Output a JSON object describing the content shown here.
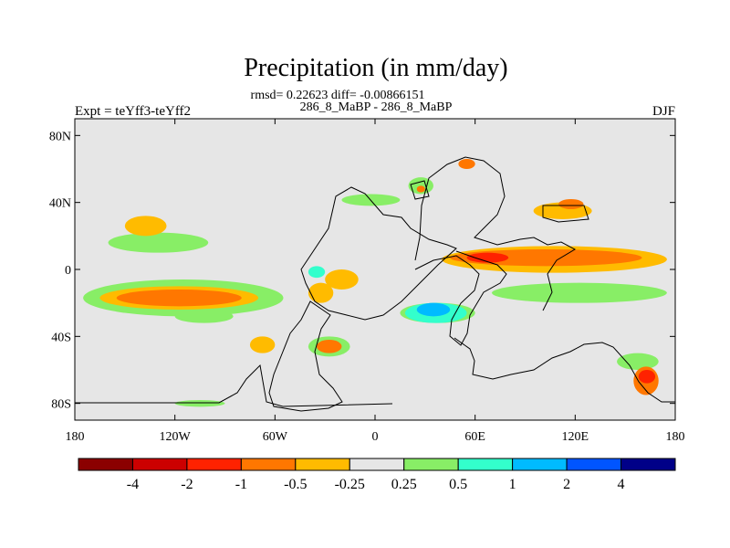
{
  "chart_data": {
    "type": "heatmap",
    "title": "Precipitation (in mm/day)",
    "subtitle": "rmsd= 0.22623 diff= -0.00866151",
    "run_label": "286_8_MaBP - 286_8_MaBP",
    "left_label": "Expt = teYff3-teYff2",
    "right_label": "DJF",
    "xlabel": "",
    "ylabel": "",
    "xlim": [
      -180,
      180
    ],
    "ylim": [
      -90,
      90
    ],
    "x_ticks": [
      {
        "value": -180,
        "label": "180"
      },
      {
        "value": -120,
        "label": "120W"
      },
      {
        "value": -60,
        "label": "60W"
      },
      {
        "value": 0,
        "label": "0"
      },
      {
        "value": 60,
        "label": "60E"
      },
      {
        "value": 120,
        "label": "120E"
      },
      {
        "value": 180,
        "label": "180"
      }
    ],
    "y_ticks": [
      {
        "value": 80,
        "label": "80N"
      },
      {
        "value": 40,
        "label": "40N"
      },
      {
        "value": 0,
        "label": "0"
      },
      {
        "value": -40,
        "label": "40S"
      },
      {
        "value": -80,
        "label": "80S"
      }
    ],
    "background_color": "#e6e6e6",
    "coast_color": "#000000",
    "colorbar": {
      "colors": [
        "#8b0000",
        "#cc0000",
        "#ff2200",
        "#ff7700",
        "#ffbb00",
        "#e6e6e6",
        "#88ee66",
        "#33ffcc",
        "#00bbff",
        "#0055ff",
        "#000088"
      ],
      "labels": [
        "-4",
        "-2",
        "-1",
        "-0.5",
        "-0.25",
        "0.25",
        "0.5",
        "1",
        "2",
        "4"
      ]
    },
    "regions": [
      {
        "name": "itcz-central-pacific-band",
        "color": "#88ee66",
        "lon": [
          -175,
          -55
        ],
        "lat": [
          -28,
          -6
        ]
      },
      {
        "name": "itcz-central-pacific-core",
        "color": "#ffbb00",
        "lon": [
          -165,
          -70
        ],
        "lat": [
          -24,
          -10
        ]
      },
      {
        "name": "itcz-central-pacific-max",
        "color": "#ff7700",
        "lon": [
          -155,
          -80
        ],
        "lat": [
          -22,
          -12
        ]
      },
      {
        "name": "north-pacific-green",
        "color": "#88ee66",
        "lon": [
          -160,
          -100
        ],
        "lat": [
          10,
          22
        ]
      },
      {
        "name": "north-pacific-yellow",
        "color": "#ffbb00",
        "lon": [
          -150,
          -125
        ],
        "lat": [
          20,
          32
        ]
      },
      {
        "name": "south-pacific-green",
        "color": "#88ee66",
        "lon": [
          -120,
          -85
        ],
        "lat": [
          -32,
          -24
        ]
      },
      {
        "name": "south-america-yellow",
        "color": "#ffbb00",
        "lon": [
          -40,
          -25
        ],
        "lat": [
          -20,
          -8
        ]
      },
      {
        "name": "south-atlantic-green",
        "color": "#88ee66",
        "lon": [
          -40,
          -15
        ],
        "lat": [
          -52,
          -40
        ]
      },
      {
        "name": "south-atlantic-orange",
        "color": "#ff7700",
        "lon": [
          -35,
          -20
        ],
        "lat": [
          -50,
          -42
        ]
      },
      {
        "name": "north-africa-cyan",
        "color": "#33ffcc",
        "lon": [
          -40,
          -30
        ],
        "lat": [
          -5,
          2
        ]
      },
      {
        "name": "north-atlantic-green",
        "color": "#88ee66",
        "lon": [
          -20,
          15
        ],
        "lat": [
          38,
          45
        ]
      },
      {
        "name": "europe-green",
        "color": "#88ee66",
        "lon": [
          20,
          35
        ],
        "lat": [
          45,
          55
        ]
      },
      {
        "name": "europe-orange",
        "color": "#ff7700",
        "lon": [
          25,
          30
        ],
        "lat": [
          46,
          50
        ]
      },
      {
        "name": "siberia-orange",
        "color": "#ff7700",
        "lon": [
          50,
          60
        ],
        "lat": [
          60,
          66
        ]
      },
      {
        "name": "indian-ocean-green",
        "color": "#88ee66",
        "lon": [
          15,
          60
        ],
        "lat": [
          -32,
          -20
        ]
      },
      {
        "name": "indian-ocean-cyan",
        "color": "#33ffcc",
        "lon": [
          18,
          55
        ],
        "lat": [
          -32,
          -20
        ]
      },
      {
        "name": "indian-ocean-blue",
        "color": "#00bbff",
        "lon": [
          25,
          45
        ],
        "lat": [
          -28,
          -20
        ]
      },
      {
        "name": "africa-arabia-band-yellow",
        "color": "#ffbb00",
        "lon": [
          40,
          175
        ],
        "lat": [
          -2,
          14
        ]
      },
      {
        "name": "africa-arabia-band-orange",
        "color": "#ff7700",
        "lon": [
          45,
          160
        ],
        "lat": [
          2,
          12
        ]
      },
      {
        "name": "africa-arabia-band-red",
        "color": "#ff2200",
        "lon": [
          55,
          80
        ],
        "lat": [
          4,
          10
        ]
      },
      {
        "name": "east-asia-yellow",
        "color": "#ffbb00",
        "lon": [
          95,
          130
        ],
        "lat": [
          30,
          40
        ]
      },
      {
        "name": "east-asia-orange",
        "color": "#ff7700",
        "lon": [
          110,
          125
        ],
        "lat": [
          36,
          42
        ]
      },
      {
        "name": "western-pacific-green",
        "color": "#88ee66",
        "lon": [
          70,
          175
        ],
        "lat": [
          -20,
          -8
        ]
      },
      {
        "name": "southern-ocean-green",
        "color": "#88ee66",
        "lon": [
          145,
          170
        ],
        "lat": [
          -60,
          -50
        ]
      },
      {
        "name": "southern-ocean-orange",
        "color": "#ff7700",
        "lon": [
          155,
          170
        ],
        "lat": [
          -75,
          -58
        ]
      },
      {
        "name": "southern-ocean-red",
        "color": "#ff2200",
        "lon": [
          158,
          168
        ],
        "lat": [
          -68,
          -60
        ]
      },
      {
        "name": "north-atlantic-yellow",
        "color": "#ffbb00",
        "lon": [
          -30,
          -10
        ],
        "lat": [
          -12,
          0
        ]
      },
      {
        "name": "patagonia-yellow",
        "color": "#ffbb00",
        "lon": [
          -75,
          -60
        ],
        "lat": [
          -50,
          -40
        ]
      },
      {
        "name": "antarctic-green",
        "color": "#88ee66",
        "lon": [
          -120,
          -90
        ],
        "lat": [
          -82,
          -78
        ]
      }
    ]
  }
}
